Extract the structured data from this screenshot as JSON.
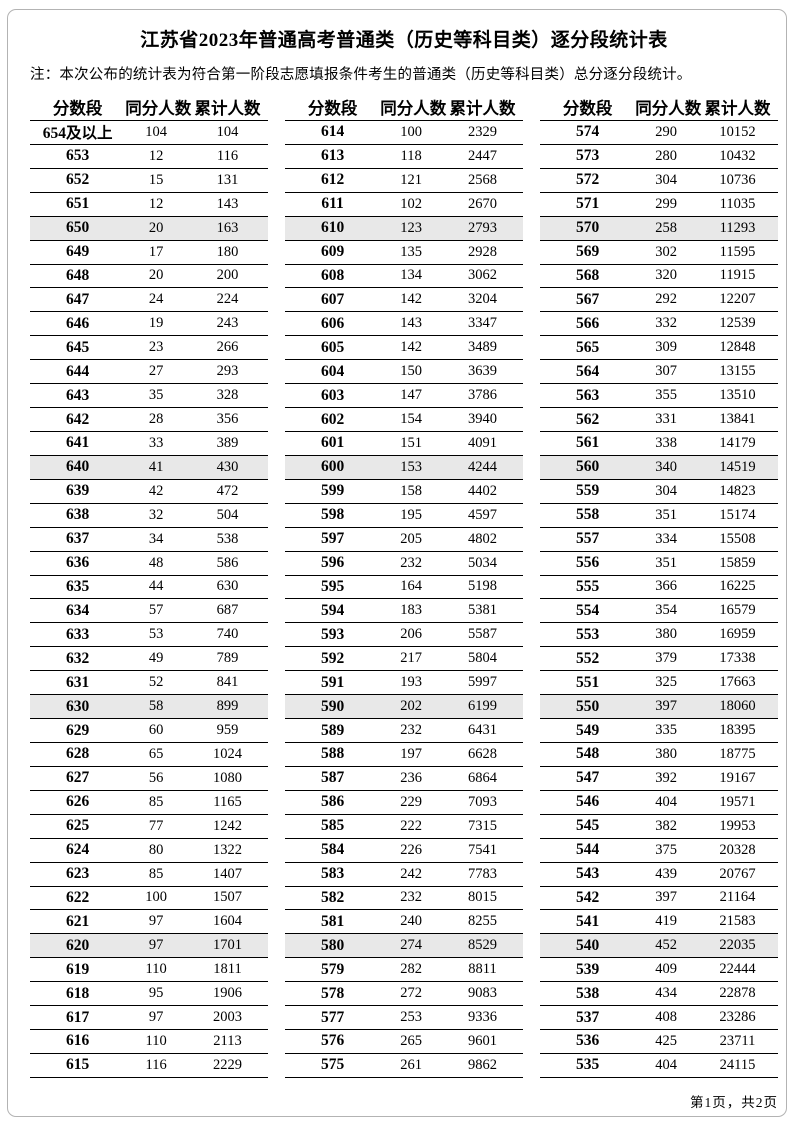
{
  "page": {
    "title": "江苏省2023年普通高考普通类（历史等科目类）逐分段统计表",
    "note": "注：本次公布的统计表为符合第一阶段志愿填报条件考生的普通类（历史等科目类）总分逐分段统计。",
    "footer": "第1页，共2页"
  },
  "table": {
    "headers": [
      "分数段",
      "同分人数",
      "累计人数"
    ],
    "highlight_color": "#e8e8e8",
    "columns": [
      {
        "rows": [
          [
            "654及以上",
            "104",
            "104"
          ],
          [
            "653",
            "12",
            "116"
          ],
          [
            "652",
            "15",
            "131"
          ],
          [
            "651",
            "12",
            "143"
          ],
          [
            "650",
            "20",
            "163"
          ],
          [
            "649",
            "17",
            "180"
          ],
          [
            "648",
            "20",
            "200"
          ],
          [
            "647",
            "24",
            "224"
          ],
          [
            "646",
            "19",
            "243"
          ],
          [
            "645",
            "23",
            "266"
          ],
          [
            "644",
            "27",
            "293"
          ],
          [
            "643",
            "35",
            "328"
          ],
          [
            "642",
            "28",
            "356"
          ],
          [
            "641",
            "33",
            "389"
          ],
          [
            "640",
            "41",
            "430"
          ],
          [
            "639",
            "42",
            "472"
          ],
          [
            "638",
            "32",
            "504"
          ],
          [
            "637",
            "34",
            "538"
          ],
          [
            "636",
            "48",
            "586"
          ],
          [
            "635",
            "44",
            "630"
          ],
          [
            "634",
            "57",
            "687"
          ],
          [
            "633",
            "53",
            "740"
          ],
          [
            "632",
            "49",
            "789"
          ],
          [
            "631",
            "52",
            "841"
          ],
          [
            "630",
            "58",
            "899"
          ],
          [
            "629",
            "60",
            "959"
          ],
          [
            "628",
            "65",
            "1024"
          ],
          [
            "627",
            "56",
            "1080"
          ],
          [
            "626",
            "85",
            "1165"
          ],
          [
            "625",
            "77",
            "1242"
          ],
          [
            "624",
            "80",
            "1322"
          ],
          [
            "623",
            "85",
            "1407"
          ],
          [
            "622",
            "100",
            "1507"
          ],
          [
            "621",
            "97",
            "1604"
          ],
          [
            "620",
            "97",
            "1701"
          ],
          [
            "619",
            "110",
            "1811"
          ],
          [
            "618",
            "95",
            "1906"
          ],
          [
            "617",
            "97",
            "2003"
          ],
          [
            "616",
            "110",
            "2113"
          ],
          [
            "615",
            "116",
            "2229"
          ]
        ]
      },
      {
        "rows": [
          [
            "614",
            "100",
            "2329"
          ],
          [
            "613",
            "118",
            "2447"
          ],
          [
            "612",
            "121",
            "2568"
          ],
          [
            "611",
            "102",
            "2670"
          ],
          [
            "610",
            "123",
            "2793"
          ],
          [
            "609",
            "135",
            "2928"
          ],
          [
            "608",
            "134",
            "3062"
          ],
          [
            "607",
            "142",
            "3204"
          ],
          [
            "606",
            "143",
            "3347"
          ],
          [
            "605",
            "142",
            "3489"
          ],
          [
            "604",
            "150",
            "3639"
          ],
          [
            "603",
            "147",
            "3786"
          ],
          [
            "602",
            "154",
            "3940"
          ],
          [
            "601",
            "151",
            "4091"
          ],
          [
            "600",
            "153",
            "4244"
          ],
          [
            "599",
            "158",
            "4402"
          ],
          [
            "598",
            "195",
            "4597"
          ],
          [
            "597",
            "205",
            "4802"
          ],
          [
            "596",
            "232",
            "5034"
          ],
          [
            "595",
            "164",
            "5198"
          ],
          [
            "594",
            "183",
            "5381"
          ],
          [
            "593",
            "206",
            "5587"
          ],
          [
            "592",
            "217",
            "5804"
          ],
          [
            "591",
            "193",
            "5997"
          ],
          [
            "590",
            "202",
            "6199"
          ],
          [
            "589",
            "232",
            "6431"
          ],
          [
            "588",
            "197",
            "6628"
          ],
          [
            "587",
            "236",
            "6864"
          ],
          [
            "586",
            "229",
            "7093"
          ],
          [
            "585",
            "222",
            "7315"
          ],
          [
            "584",
            "226",
            "7541"
          ],
          [
            "583",
            "242",
            "7783"
          ],
          [
            "582",
            "232",
            "8015"
          ],
          [
            "581",
            "240",
            "8255"
          ],
          [
            "580",
            "274",
            "8529"
          ],
          [
            "579",
            "282",
            "8811"
          ],
          [
            "578",
            "272",
            "9083"
          ],
          [
            "577",
            "253",
            "9336"
          ],
          [
            "576",
            "265",
            "9601"
          ],
          [
            "575",
            "261",
            "9862"
          ]
        ]
      },
      {
        "rows": [
          [
            "574",
            "290",
            "10152"
          ],
          [
            "573",
            "280",
            "10432"
          ],
          [
            "572",
            "304",
            "10736"
          ],
          [
            "571",
            "299",
            "11035"
          ],
          [
            "570",
            "258",
            "11293"
          ],
          [
            "569",
            "302",
            "11595"
          ],
          [
            "568",
            "320",
            "11915"
          ],
          [
            "567",
            "292",
            "12207"
          ],
          [
            "566",
            "332",
            "12539"
          ],
          [
            "565",
            "309",
            "12848"
          ],
          [
            "564",
            "307",
            "13155"
          ],
          [
            "563",
            "355",
            "13510"
          ],
          [
            "562",
            "331",
            "13841"
          ],
          [
            "561",
            "338",
            "14179"
          ],
          [
            "560",
            "340",
            "14519"
          ],
          [
            "559",
            "304",
            "14823"
          ],
          [
            "558",
            "351",
            "15174"
          ],
          [
            "557",
            "334",
            "15508"
          ],
          [
            "556",
            "351",
            "15859"
          ],
          [
            "555",
            "366",
            "16225"
          ],
          [
            "554",
            "354",
            "16579"
          ],
          [
            "553",
            "380",
            "16959"
          ],
          [
            "552",
            "379",
            "17338"
          ],
          [
            "551",
            "325",
            "17663"
          ],
          [
            "550",
            "397",
            "18060"
          ],
          [
            "549",
            "335",
            "18395"
          ],
          [
            "548",
            "380",
            "18775"
          ],
          [
            "547",
            "392",
            "19167"
          ],
          [
            "546",
            "404",
            "19571"
          ],
          [
            "545",
            "382",
            "19953"
          ],
          [
            "544",
            "375",
            "20328"
          ],
          [
            "543",
            "439",
            "20767"
          ],
          [
            "542",
            "397",
            "21164"
          ],
          [
            "541",
            "419",
            "21583"
          ],
          [
            "540",
            "452",
            "22035"
          ],
          [
            "539",
            "409",
            "22444"
          ],
          [
            "538",
            "434",
            "22878"
          ],
          [
            "537",
            "408",
            "23286"
          ],
          [
            "536",
            "425",
            "23711"
          ],
          [
            "535",
            "404",
            "24115"
          ]
        ]
      }
    ]
  }
}
